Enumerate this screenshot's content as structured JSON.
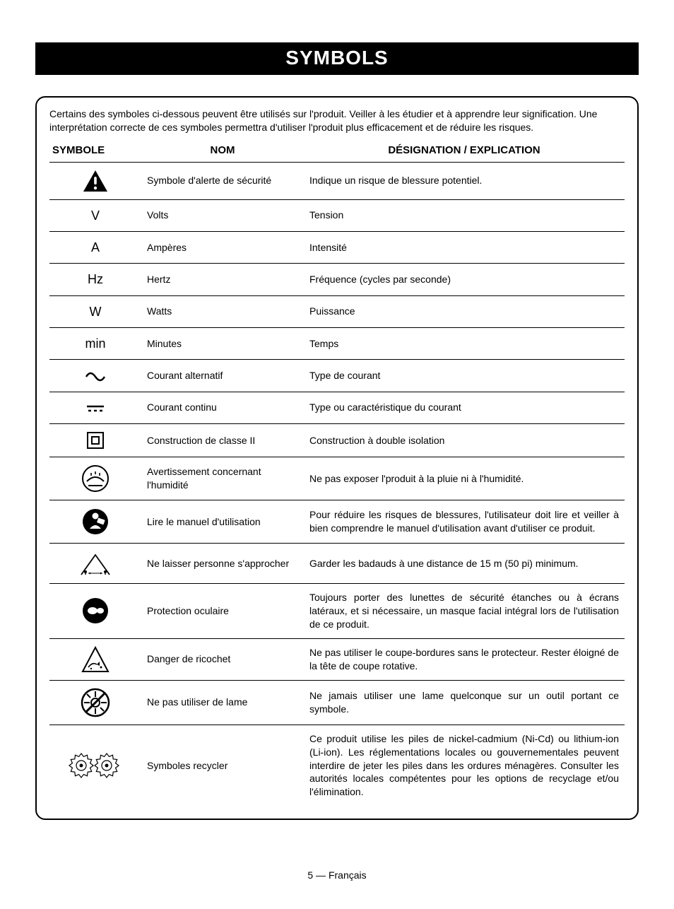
{
  "header_title": "SYMBOLS",
  "intro_text": "Certains des symboles ci-dessous peuvent être utilisés sur l'produit. Veiller à les étudier et à apprendre leur signification. Une interprétation correcte de ces symboles permettra d'utiliser l'produit plus efficacement et de réduire les risques.",
  "columns": {
    "symbol": "SYMBOLE",
    "name": "NOM",
    "designation": "DÉSIGNATION / EXPLICATION"
  },
  "rows": [
    {
      "icon": "alert",
      "name": "Symbole d'alerte de sécurité",
      "desc": "Indique un risque de blessure potentiel."
    },
    {
      "icon": "text",
      "glyph": "V",
      "name": "Volts",
      "desc": "Tension"
    },
    {
      "icon": "text",
      "glyph": "A",
      "name": "Ampères",
      "desc": "Intensité"
    },
    {
      "icon": "text",
      "glyph": "Hz",
      "name": "Hertz",
      "desc": "Fréquence (cycles par seconde)"
    },
    {
      "icon": "text",
      "glyph": "W",
      "name": "Watts",
      "desc": "Puissance"
    },
    {
      "icon": "text",
      "glyph": "min",
      "name": "Minutes",
      "desc": "Temps"
    },
    {
      "icon": "ac",
      "name": "Courant alternatif",
      "desc": "Type de courant"
    },
    {
      "icon": "dc",
      "name": "Courant continu",
      "desc": "Type ou caractéristique du courant"
    },
    {
      "icon": "class2",
      "name": "Construction de classe II",
      "desc": "Construction à double isolation"
    },
    {
      "icon": "wet",
      "name": "Avertissement concernant l'humidité",
      "desc": "Ne pas exposer l'produit à la pluie ni à l'humidité."
    },
    {
      "icon": "manual",
      "name": "Lire le manuel d'utilisation",
      "desc": "Pour réduire les risques de blessures, l'utilisateur doit lire et veiller à bien comprendre le manuel d'utilisation avant d'utiliser ce produit."
    },
    {
      "icon": "bystander",
      "name": "Ne laisser personne s'approcher",
      "desc": "Garder les badauds à une distance de 15 m (50 pi) minimum."
    },
    {
      "icon": "eye",
      "name": "Protection oculaire",
      "desc": "Toujours porter des lunettes de sécurité étanches ou à écrans latéraux, et si nécessaire, un masque facial intégral lors de l'utilisation de ce produit."
    },
    {
      "icon": "ricochet",
      "name": "Danger de ricochet",
      "desc": "Ne pas utiliser le coupe-bordures sans le protecteur. Rester éloigné de la tête de coupe rotative."
    },
    {
      "icon": "noblade",
      "name": "Ne pas utiliser de lame",
      "desc": "Ne jamais utiliser une lame quelconque sur un outil portant ce symbole."
    },
    {
      "icon": "recycle",
      "name": "Symboles recycler",
      "desc": "Ce produit utilise les piles de nickel-cadmium (Ni-Cd) ou lithium-ion (Li-ion). Les réglementations locales ou gouvernementales peuvent interdire de jeter les piles dans les ordures ménagères. Consulter les autorités locales compétentes pour les options de recyclage et/ou l'élimination."
    }
  ],
  "page_number": "5 — Français",
  "colors": {
    "black": "#000000",
    "white": "#ffffff"
  },
  "fonts": {
    "body_size_pt": 14,
    "title_size_pt": 28
  }
}
